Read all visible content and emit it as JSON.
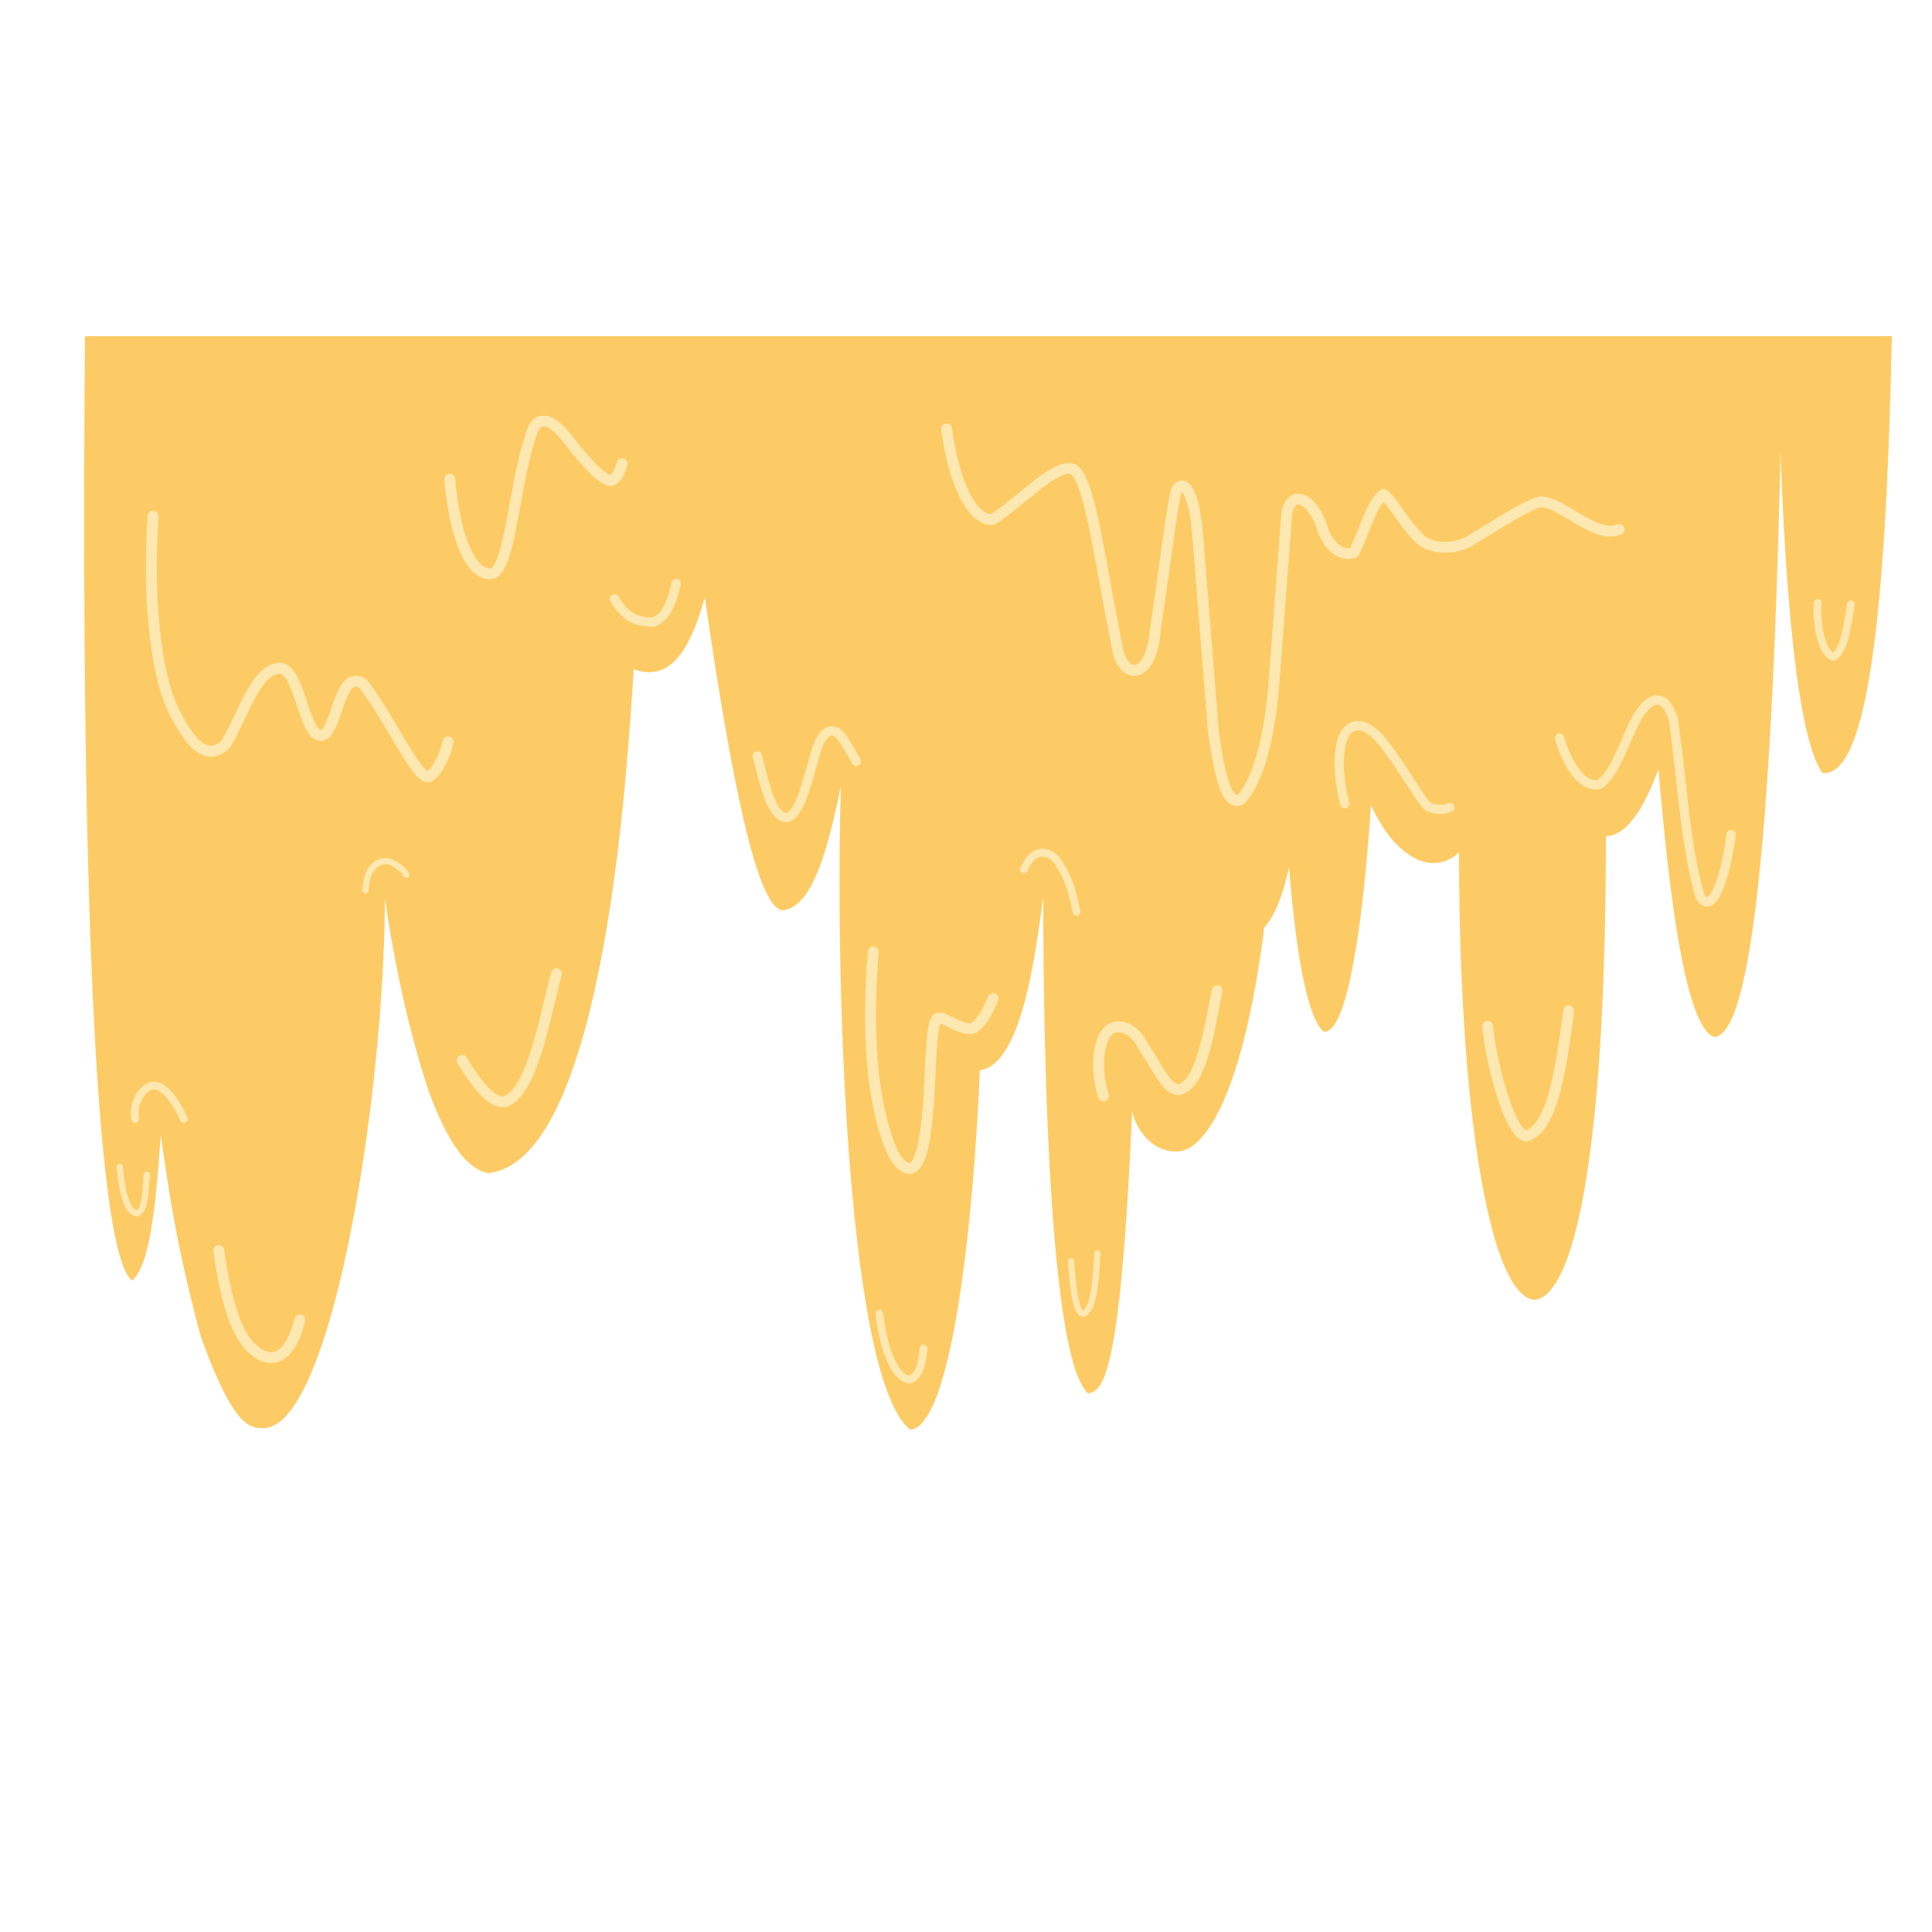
{
  "illustration": {
    "subject": "dripping-honey",
    "colors": {
      "background": "#ffffff",
      "drip_fill": "#FDCB65",
      "highlight": "#FDE8B2"
    }
  }
}
